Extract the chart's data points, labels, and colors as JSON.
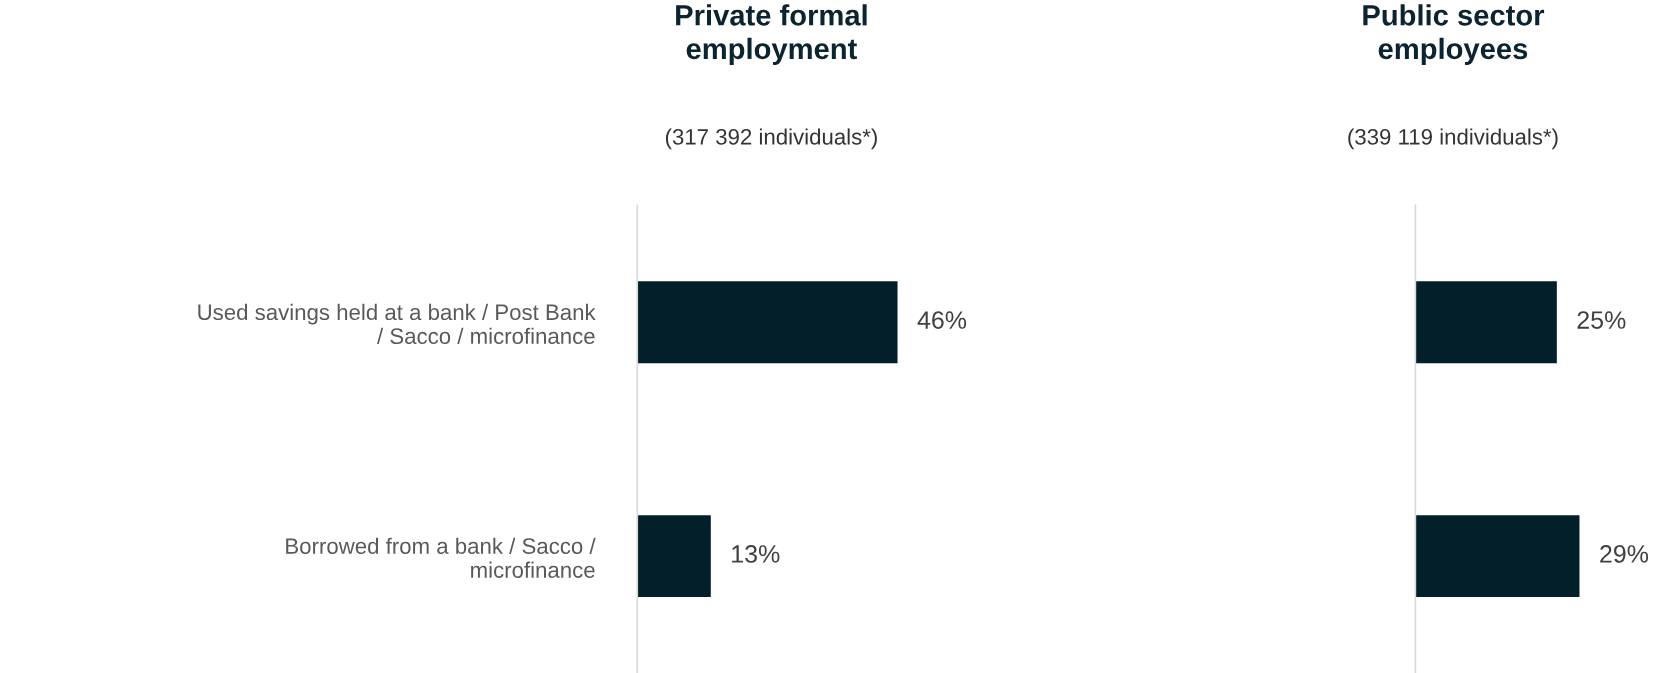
{
  "chart_data": [
    {
      "type": "bar",
      "orientation": "horizontal",
      "title": "Private formal\nemployment",
      "subtitle": "(317 392 individuals*)",
      "categories": [
        "Used savings held at a bank / Post Bank\n/ Sacco / microfinance",
        "Borrowed from a bank / Sacco /\nmicrofinance"
      ],
      "values": [
        46,
        13
      ],
      "value_labels": [
        "46%",
        "13%"
      ],
      "color": "#021f2a",
      "tick_labels": "y"
    },
    {
      "type": "bar",
      "orientation": "horizontal",
      "title": "Public sector\nemployees",
      "subtitle": "(339 119 individuals*)",
      "categories": [
        null,
        null
      ],
      "values": [
        25,
        29
      ],
      "value_labels": [
        "25%",
        "29%"
      ],
      "color": "#021f2a",
      "tick_labels": false
    }
  ]
}
